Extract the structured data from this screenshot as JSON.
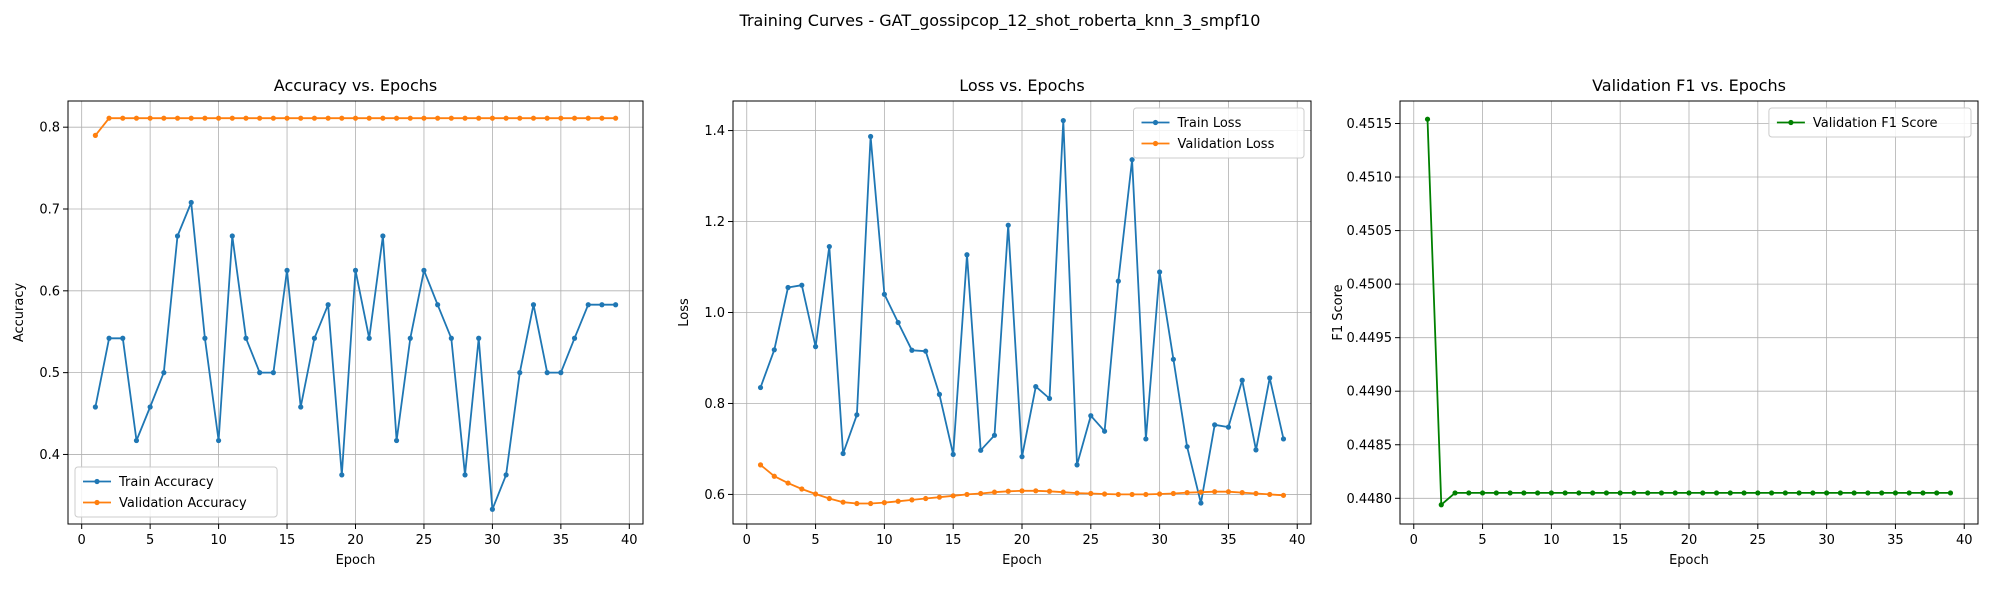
{
  "figure": {
    "suptitle": "Training Curves - GAT_gossipcop_12_shot_roberta_knn_3_smpf10"
  },
  "chart_data": [
    {
      "type": "line",
      "title": "Accuracy vs. Epochs",
      "xlabel": "Epoch",
      "ylabel": "Accuracy",
      "xlim": [
        -1,
        41
      ],
      "ylim": [
        0.315,
        0.832
      ],
      "xticks": [
        0,
        5,
        10,
        15,
        20,
        25,
        30,
        35,
        40
      ],
      "yticks": [
        0.4,
        0.5,
        0.6,
        0.7,
        0.8
      ],
      "ytick_decimals": 1,
      "grid": true,
      "legend": "lower-left",
      "x": [
        1,
        2,
        3,
        4,
        5,
        6,
        7,
        8,
        9,
        10,
        11,
        12,
        13,
        14,
        15,
        16,
        17,
        18,
        19,
        20,
        21,
        22,
        23,
        24,
        25,
        26,
        27,
        28,
        29,
        30,
        31,
        32,
        33,
        34,
        35,
        36,
        37,
        38,
        39
      ],
      "series": [
        {
          "name": "Train Accuracy",
          "color": "#1f77b4",
          "values": [
            0.458,
            0.542,
            0.542,
            0.417,
            0.458,
            0.5,
            0.667,
            0.708,
            0.542,
            0.417,
            0.667,
            0.542,
            0.5,
            0.5,
            0.625,
            0.458,
            0.542,
            0.583,
            0.375,
            0.625,
            0.542,
            0.667,
            0.417,
            0.542,
            0.625,
            0.583,
            0.542,
            0.375,
            0.542,
            0.333,
            0.375,
            0.5,
            0.583,
            0.5,
            0.5,
            0.542,
            0.583,
            0.583,
            0.583
          ]
        },
        {
          "name": "Validation Accuracy",
          "color": "#ff7f0e",
          "values": [
            0.79,
            0.811,
            0.811,
            0.811,
            0.811,
            0.811,
            0.811,
            0.811,
            0.811,
            0.811,
            0.811,
            0.811,
            0.811,
            0.811,
            0.811,
            0.811,
            0.811,
            0.811,
            0.811,
            0.811,
            0.811,
            0.811,
            0.811,
            0.811,
            0.811,
            0.811,
            0.811,
            0.811,
            0.811,
            0.811,
            0.811,
            0.811,
            0.811,
            0.811,
            0.811,
            0.811,
            0.811,
            0.811,
            0.811
          ]
        }
      ]
    },
    {
      "type": "line",
      "title": "Loss vs. Epochs",
      "xlabel": "Epoch",
      "ylabel": "Loss",
      "xlim": [
        -1,
        41
      ],
      "ylim": [
        0.535,
        1.465
      ],
      "xticks": [
        0,
        5,
        10,
        15,
        20,
        25,
        30,
        35,
        40
      ],
      "yticks": [
        0.6,
        0.8,
        1.0,
        1.2,
        1.4
      ],
      "ytick_decimals": 1,
      "grid": true,
      "legend": "top-right",
      "x": [
        1,
        2,
        3,
        4,
        5,
        6,
        7,
        8,
        9,
        10,
        11,
        12,
        13,
        14,
        15,
        16,
        17,
        18,
        19,
        20,
        21,
        22,
        23,
        24,
        25,
        26,
        27,
        28,
        29,
        30,
        31,
        32,
        33,
        34,
        35,
        36,
        37,
        38,
        39
      ],
      "series": [
        {
          "name": "Train Loss",
          "color": "#1f77b4",
          "values": [
            0.835,
            0.918,
            1.055,
            1.06,
            0.925,
            1.145,
            0.69,
            0.775,
            1.387,
            1.04,
            0.978,
            0.917,
            0.915,
            0.82,
            0.688,
            1.127,
            0.697,
            0.73,
            1.192,
            0.683,
            0.837,
            0.811,
            1.422,
            0.665,
            0.773,
            0.739,
            1.069,
            1.336,
            0.722,
            1.089,
            0.897,
            0.705,
            0.581,
            0.753,
            0.748,
            0.851,
            0.698,
            0.856,
            0.722
          ]
        },
        {
          "name": "Validation Loss",
          "color": "#ff7f0e",
          "values": [
            0.665,
            0.64,
            0.625,
            0.612,
            0.601,
            0.591,
            0.583,
            0.58,
            0.58,
            0.582,
            0.585,
            0.588,
            0.591,
            0.594,
            0.597,
            0.6,
            0.602,
            0.605,
            0.607,
            0.608,
            0.608,
            0.607,
            0.605,
            0.603,
            0.602,
            0.601,
            0.6,
            0.6,
            0.6,
            0.601,
            0.602,
            0.604,
            0.605,
            0.606,
            0.606,
            0.604,
            0.602,
            0.6,
            0.598
          ]
        }
      ]
    },
    {
      "type": "line",
      "title": "Validation F1 vs. Epochs",
      "xlabel": "Epoch",
      "ylabel": "F1 Score",
      "xlim": [
        -1,
        41
      ],
      "ylim": [
        0.44776,
        0.45171
      ],
      "xticks": [
        0,
        5,
        10,
        15,
        20,
        25,
        30,
        35,
        40
      ],
      "yticks": [
        0.448,
        0.4485,
        0.449,
        0.4495,
        0.45,
        0.4505,
        0.451,
        0.4515
      ],
      "ytick_decimals": 4,
      "grid": true,
      "legend": "top-right",
      "x": [
        1,
        2,
        3,
        4,
        5,
        6,
        7,
        8,
        9,
        10,
        11,
        12,
        13,
        14,
        15,
        16,
        17,
        18,
        19,
        20,
        21,
        22,
        23,
        24,
        25,
        26,
        27,
        28,
        29,
        30,
        31,
        32,
        33,
        34,
        35,
        36,
        37,
        38,
        39
      ],
      "series": [
        {
          "name": "Validation F1 Score",
          "color": "#008000",
          "values": [
            0.45154,
            0.44794,
            0.44805,
            0.44805,
            0.44805,
            0.44805,
            0.44805,
            0.44805,
            0.44805,
            0.44805,
            0.44805,
            0.44805,
            0.44805,
            0.44805,
            0.44805,
            0.44805,
            0.44805,
            0.44805,
            0.44805,
            0.44805,
            0.44805,
            0.44805,
            0.44805,
            0.44805,
            0.44805,
            0.44805,
            0.44805,
            0.44805,
            0.44805,
            0.44805,
            0.44805,
            0.44805,
            0.44805,
            0.44805,
            0.44805,
            0.44805,
            0.44805,
            0.44805,
            0.44805
          ]
        }
      ]
    }
  ]
}
